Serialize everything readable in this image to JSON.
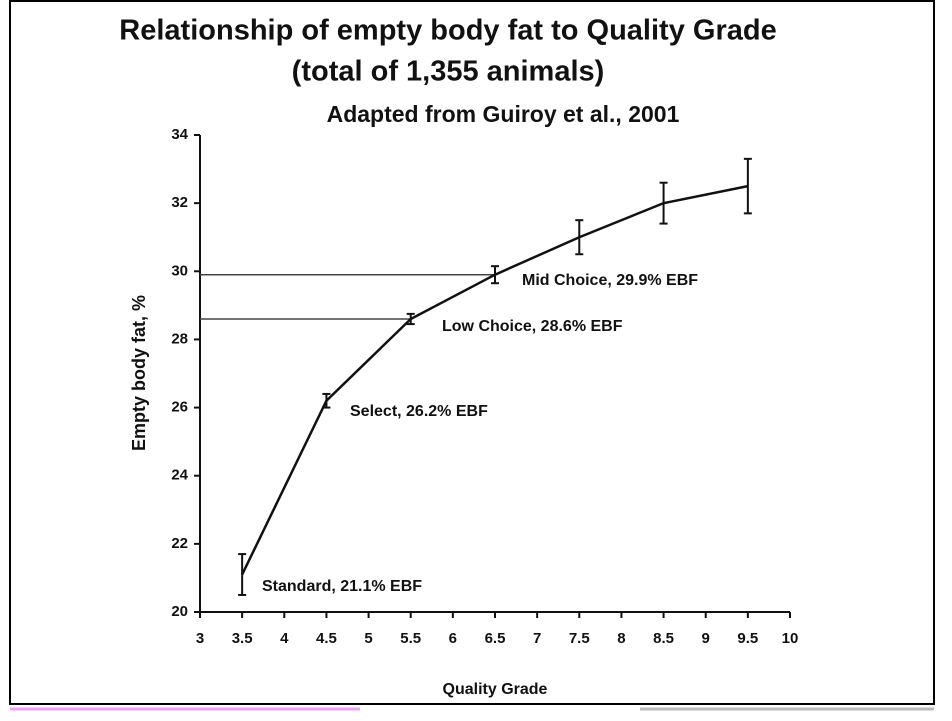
{
  "chart_data": {
    "type": "line",
    "title": "Relationship of empty body fat to Quality Grade",
    "subtitle": "(total of 1,355 animals)",
    "note": "Adapted from Guiroy et al., 2001",
    "x_label": "Quality Grade",
    "y_label": "Empty body fat, %",
    "x": [
      3.5,
      4.5,
      5.5,
      6.5,
      7.5,
      8.5,
      9.5
    ],
    "series": [
      {
        "name": "Empty body fat",
        "color": "#111111",
        "values": [
          21.1,
          26.2,
          28.6,
          29.9,
          31.0,
          32.0,
          32.5
        ],
        "errors": [
          0.6,
          0.2,
          0.15,
          0.25,
          0.5,
          0.6,
          0.8
        ]
      }
    ],
    "annotations": [
      "Standard, 21.1% EBF",
      "Select, 26.2% EBF",
      "Low Choice, 28.6% EBF",
      "Mid Choice, 29.9% EBF"
    ],
    "xlim": [
      3,
      10
    ],
    "xticks": [
      3,
      3.5,
      4,
      4.5,
      5,
      5.5,
      6,
      6.5,
      7,
      7.5,
      8,
      8.5,
      9,
      9.5,
      10
    ],
    "ylim": [
      20,
      34
    ],
    "yticks": [
      20,
      22,
      24,
      26,
      28,
      30,
      32,
      34
    ]
  }
}
